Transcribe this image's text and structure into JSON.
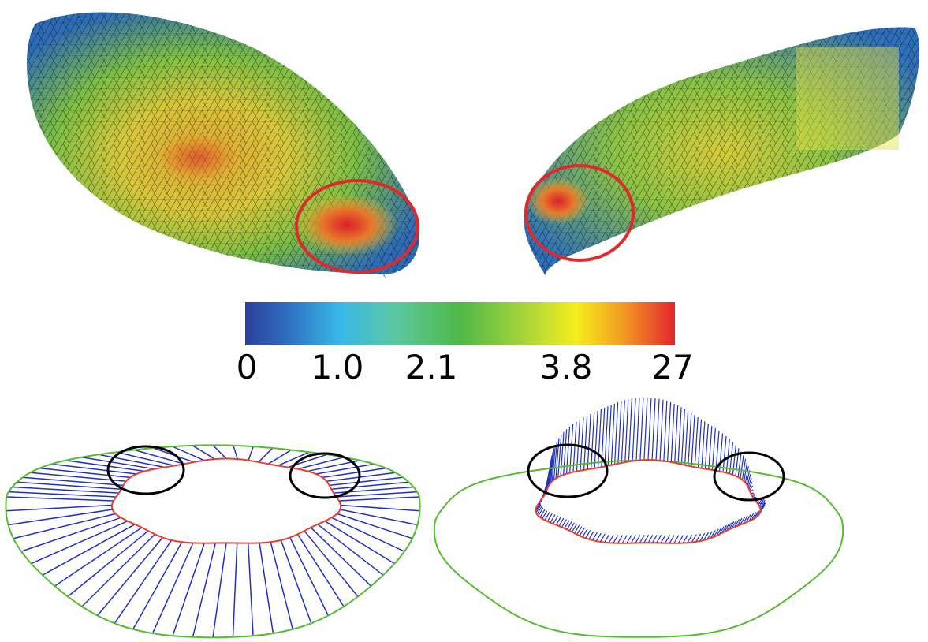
{
  "colorbar": {
    "labels": [
      "0",
      "1.0",
      "2.1",
      "3.8",
      "27"
    ]
  }
}
